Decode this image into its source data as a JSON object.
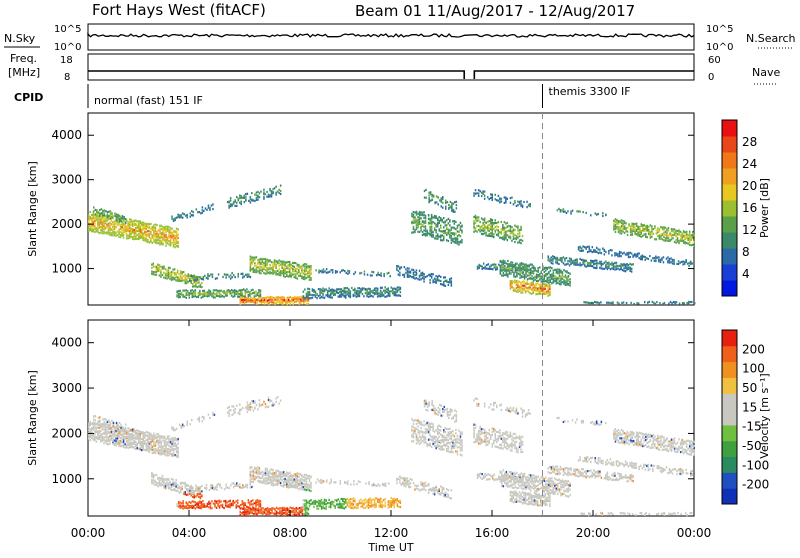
{
  "header": {
    "station": "Fort Hays West (fitACF)",
    "beam_date": "Beam 01  11/Aug/2017 - 12/Aug/2017"
  },
  "status_panels": {
    "nsky_label": "N.Sky",
    "nsearch_label": "N.Search",
    "noise_ticks_top": "10^5",
    "noise_ticks_bottom": "10^0",
    "freq_label_1": "Freq.",
    "freq_label_2": "[MHz]",
    "freq_ticks": [
      "18",
      "8"
    ],
    "nave_label": "Nave",
    "nave_ticks": [
      "60",
      "0"
    ],
    "cpid_label": "CPID",
    "cpid_1": "normal (fast) 151 IF",
    "cpid_2": "themis 3300 IF",
    "cpid_2_start_hour": 18
  },
  "chart_data": [
    {
      "type": "heatmap",
      "panel": "power",
      "ylabel": "Slant Range [km]",
      "xlabel": "",
      "yticks": [
        1000,
        2000,
        3000,
        4000
      ],
      "ylim": [
        180,
        4500
      ],
      "colorbar": {
        "label": "Power [dB]",
        "ticks": [
          4,
          8,
          12,
          16,
          20,
          24,
          28
        ],
        "colors": [
          "#0018e0",
          "#1a3fd6",
          "#2a6aa8",
          "#3a8a6a",
          "#5aa048",
          "#9ac030",
          "#e8c820",
          "#f0a020",
          "#f07818",
          "#e84818",
          "#e81010"
        ]
      }
    },
    {
      "type": "heatmap",
      "panel": "velocity",
      "ylabel": "Slant Range [km]",
      "xlabel": "Time UT",
      "yticks": [
        1000,
        2000,
        3000,
        4000
      ],
      "ylim": [
        180,
        4500
      ],
      "xticks": [
        "00:00",
        "04:00",
        "08:00",
        "12:00",
        "16:00",
        "20:00",
        "00:00"
      ],
      "xlim_hours": [
        0,
        24
      ],
      "colorbar": {
        "label": "Velocity [m s⁻¹]",
        "ticks": [
          "200",
          "100",
          "50",
          "15",
          "-15",
          "-50",
          "-100",
          "-200"
        ],
        "colors": [
          "#1030b8",
          "#2050c0",
          "#2a8a60",
          "#40a040",
          "#70c040",
          "#c8c8c0",
          "#c8c8c0",
          "#f0c040",
          "#f09020",
          "#f06018",
          "#e82010"
        ]
      }
    }
  ]
}
